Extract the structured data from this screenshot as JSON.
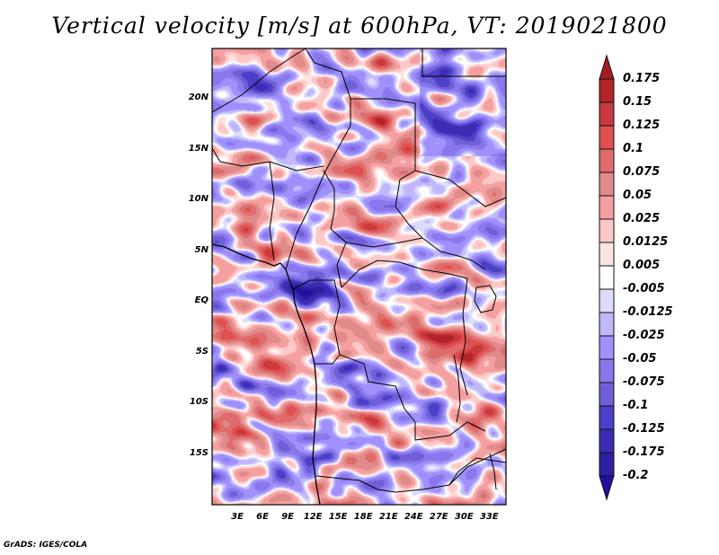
{
  "title": "Vertical velocity [m/s] at 600hPa, VT: 2019021800",
  "credit": "GrADS: IGES/COLA",
  "map": {
    "lon_range": [
      0,
      35
    ],
    "lat_range": [
      -20,
      25
    ],
    "lat_ticks": [
      {
        "label": "20N",
        "lat": 20
      },
      {
        "label": "15N",
        "lat": 15
      },
      {
        "label": "10N",
        "lat": 10
      },
      {
        "label": "5N",
        "lat": 5
      },
      {
        "label": "EQ",
        "lat": 0
      },
      {
        "label": "5S",
        "lat": -5
      },
      {
        "label": "10S",
        "lat": -10
      },
      {
        "label": "15S",
        "lat": -15
      }
    ],
    "lon_ticks": [
      {
        "label": "3E",
        "lon": 3
      },
      {
        "label": "6E",
        "lon": 6
      },
      {
        "label": "9E",
        "lon": 9
      },
      {
        "label": "12E",
        "lon": 12
      },
      {
        "label": "15E",
        "lon": 15
      },
      {
        "label": "18E",
        "lon": 18
      },
      {
        "label": "21E",
        "lon": 21
      },
      {
        "label": "24E",
        "lon": 24
      },
      {
        "label": "27E",
        "lon": 27
      },
      {
        "label": "30E",
        "lon": 30
      },
      {
        "label": "33E",
        "lon": 33
      }
    ]
  },
  "colorbar": {
    "levels": [
      "0.175",
      "0.15",
      "0.125",
      "0.1",
      "0.075",
      "0.05",
      "0.025",
      "0.0125",
      "0.005",
      "-0.005",
      "-0.0125",
      "-0.025",
      "-0.05",
      "-0.075",
      "-0.1",
      "-0.125",
      "-0.175",
      "-0.2"
    ],
    "colors": [
      "#a51d21",
      "#b22428",
      "#c83a3d",
      "#e05050",
      "#e06b6b",
      "#e08a8a",
      "#f5a0a0",
      "#fdc8c8",
      "#fde4e4",
      "#ffffff",
      "#dcdcfc",
      "#c0b8fc",
      "#a090fc",
      "#8878ec",
      "#7060d8",
      "#4c40c8",
      "#3c2cb4",
      "#2c20a0",
      "#2010a0"
    ]
  }
}
